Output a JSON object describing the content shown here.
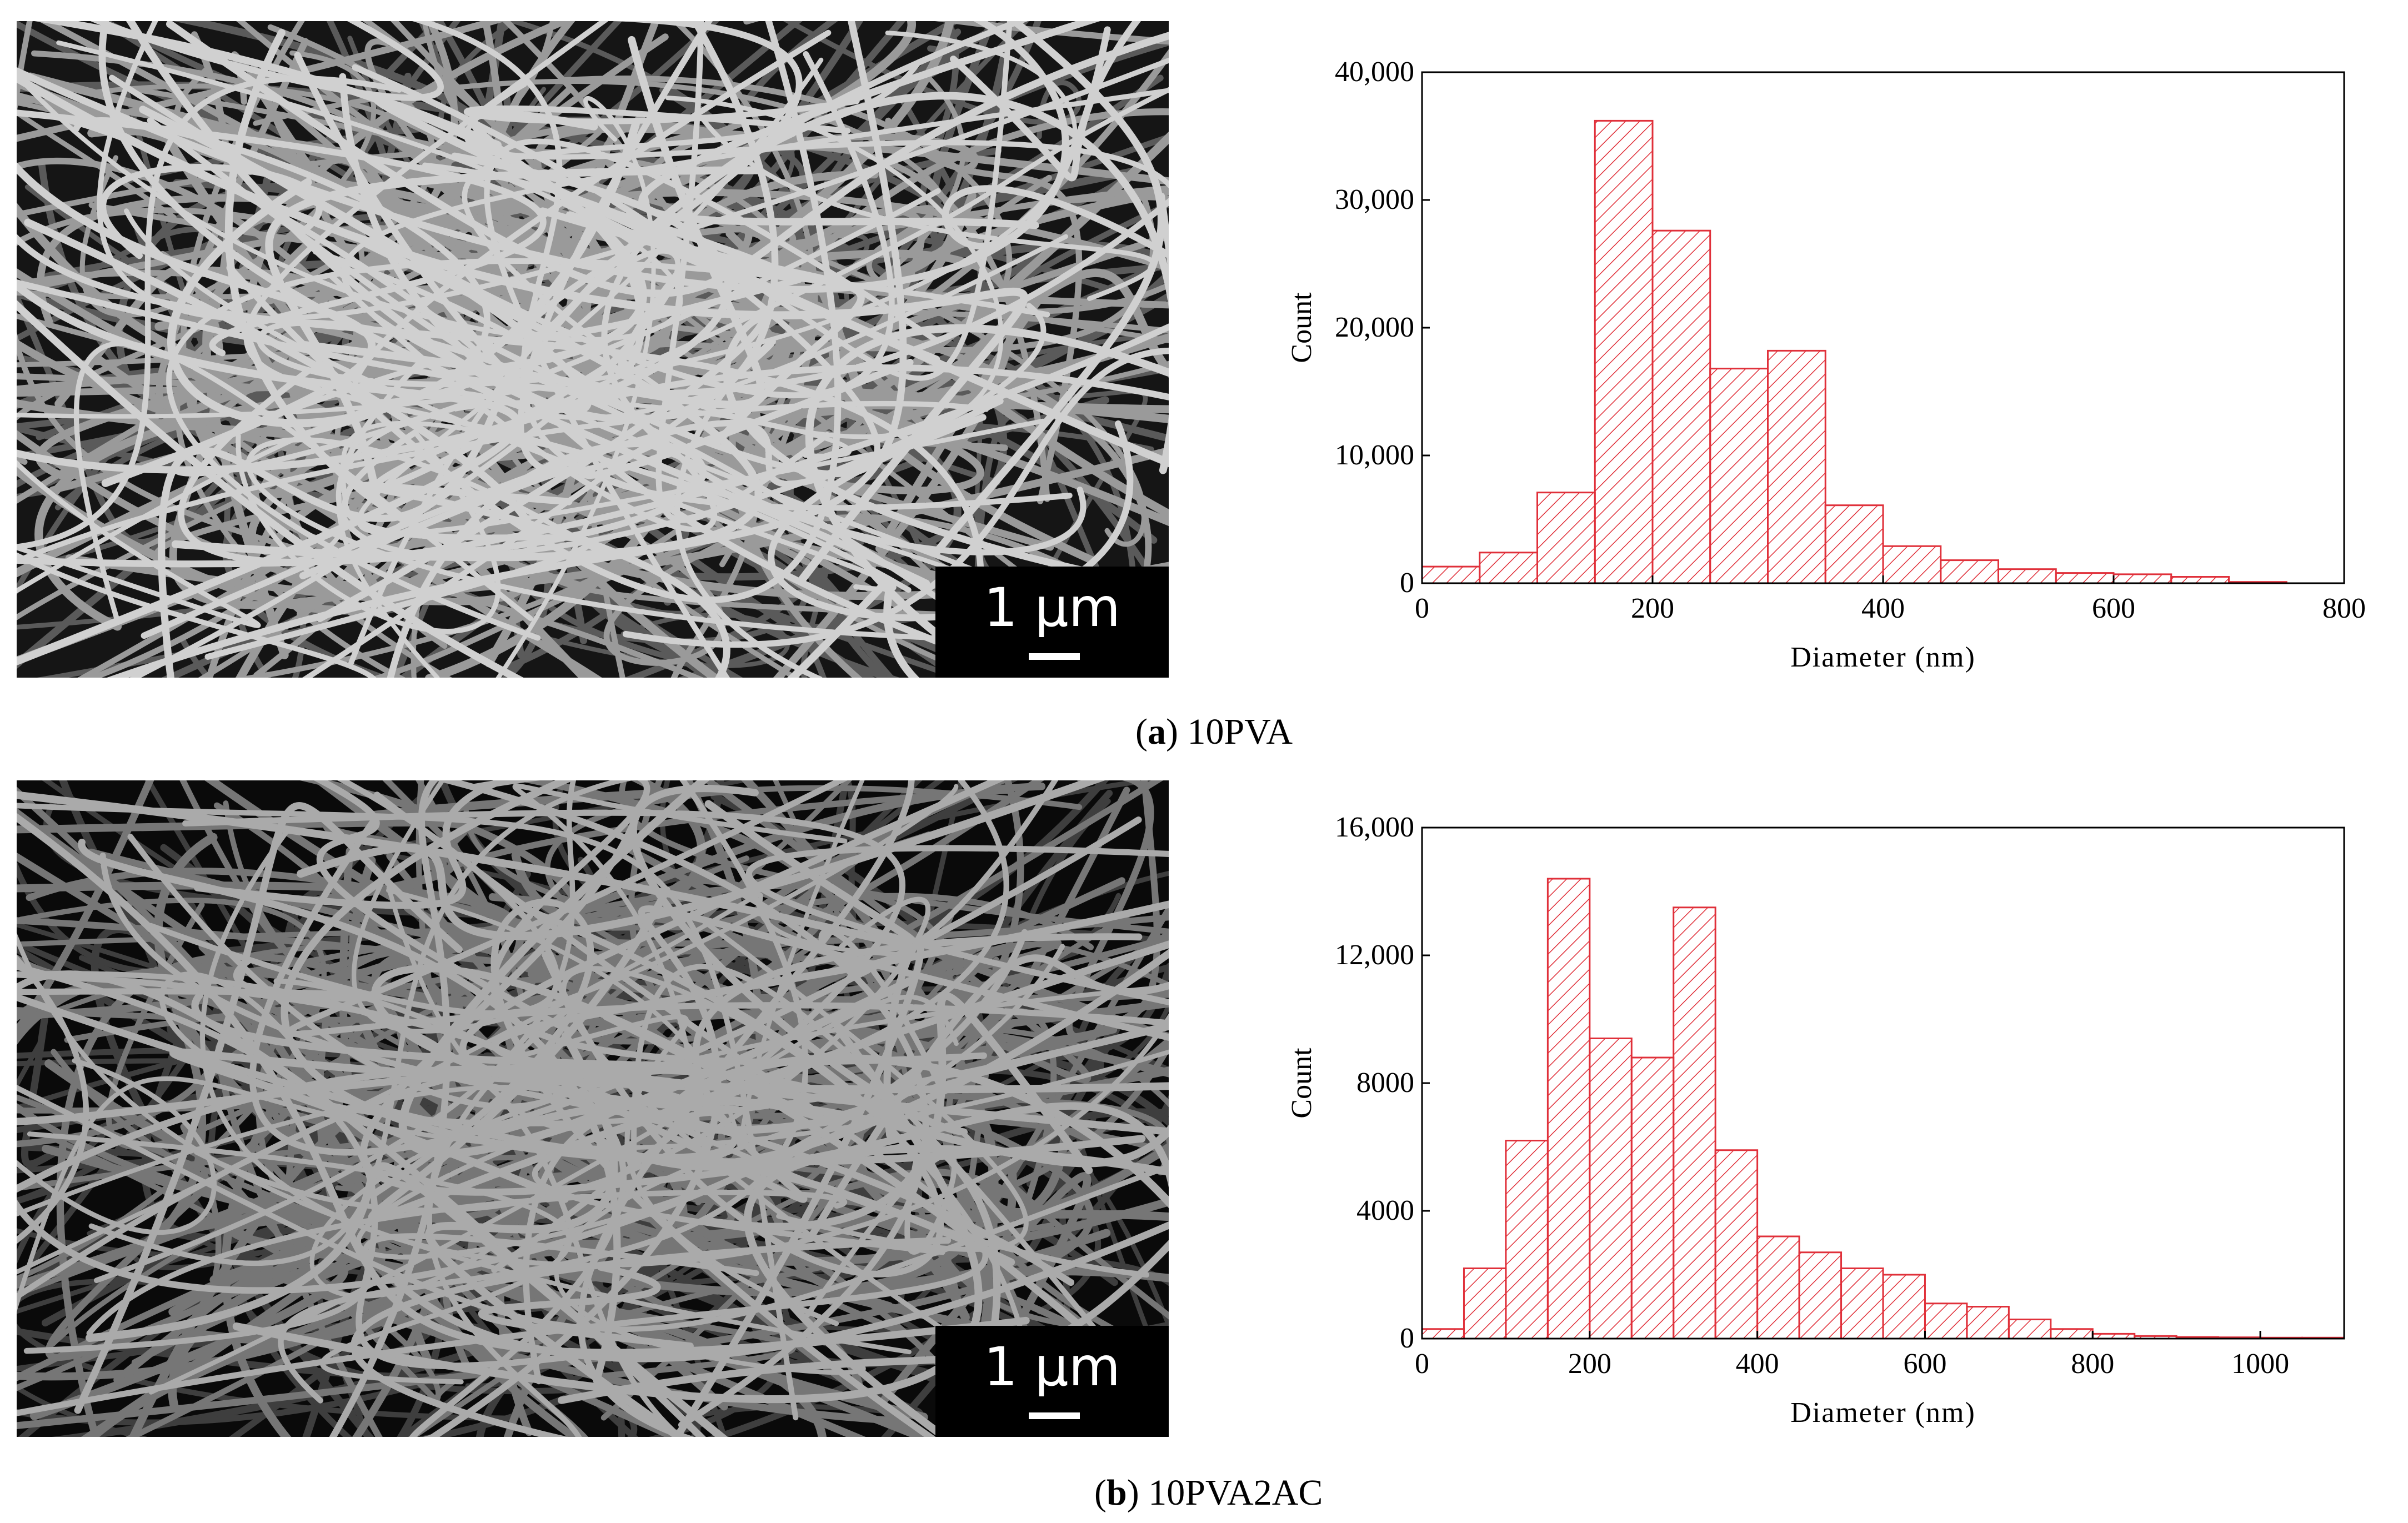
{
  "panels": [
    {
      "caption_letter": "a",
      "caption_name": "10PVA",
      "scale_label": "1 µm",
      "sem_tone": "light"
    },
    {
      "caption_letter": "b",
      "caption_name": "10PVA2AC",
      "scale_label": "1 µm",
      "sem_tone": "dark"
    }
  ],
  "colors": {
    "bar": "#e0303a",
    "axis": "#000000"
  },
  "chart_data": [
    {
      "type": "bar",
      "xlabel": "Diameter (nm)",
      "ylabel": "Count",
      "bin_width": 50,
      "bin_starts": [
        0,
        50,
        100,
        150,
        200,
        250,
        300,
        350,
        400,
        450,
        500,
        550,
        600,
        650,
        700
      ],
      "values": [
        1300,
        2400,
        7100,
        36200,
        27600,
        16800,
        18200,
        6100,
        2900,
        1800,
        1100,
        800,
        700,
        500,
        100
      ],
      "xlim": [
        0,
        800
      ],
      "ylim": [
        0,
        40000
      ],
      "xticks": [
        0,
        200,
        400,
        600,
        800
      ],
      "xtick_labels": [
        "0",
        "200",
        "400",
        "600",
        "800"
      ],
      "yticks": [
        0,
        10000,
        20000,
        30000,
        40000
      ],
      "ytick_labels": [
        "0",
        "10,000",
        "20,000",
        "30,000",
        "40,000"
      ]
    },
    {
      "type": "bar",
      "xlabel": "Diameter (nm)",
      "ylabel": "Count",
      "bin_width": 50,
      "bin_starts": [
        0,
        50,
        100,
        150,
        200,
        250,
        300,
        350,
        400,
        450,
        500,
        550,
        600,
        650,
        700,
        750,
        800,
        850,
        900,
        950,
        1000,
        1050
      ],
      "values": [
        300,
        2200,
        6200,
        14400,
        9400,
        8800,
        13500,
        5900,
        3200,
        2700,
        2200,
        2000,
        1100,
        1000,
        600,
        300,
        150,
        80,
        50,
        40,
        30,
        30
      ],
      "xlim": [
        0,
        1100
      ],
      "ylim": [
        0,
        16000
      ],
      "xticks": [
        0,
        200,
        400,
        600,
        800,
        1000
      ],
      "xtick_labels": [
        "0",
        "200",
        "400",
        "600",
        "800",
        "1000"
      ],
      "yticks": [
        0,
        4000,
        8000,
        12000,
        16000
      ],
      "ytick_labels": [
        "0",
        "4000",
        "8000",
        "12,000",
        "16,000"
      ]
    }
  ]
}
